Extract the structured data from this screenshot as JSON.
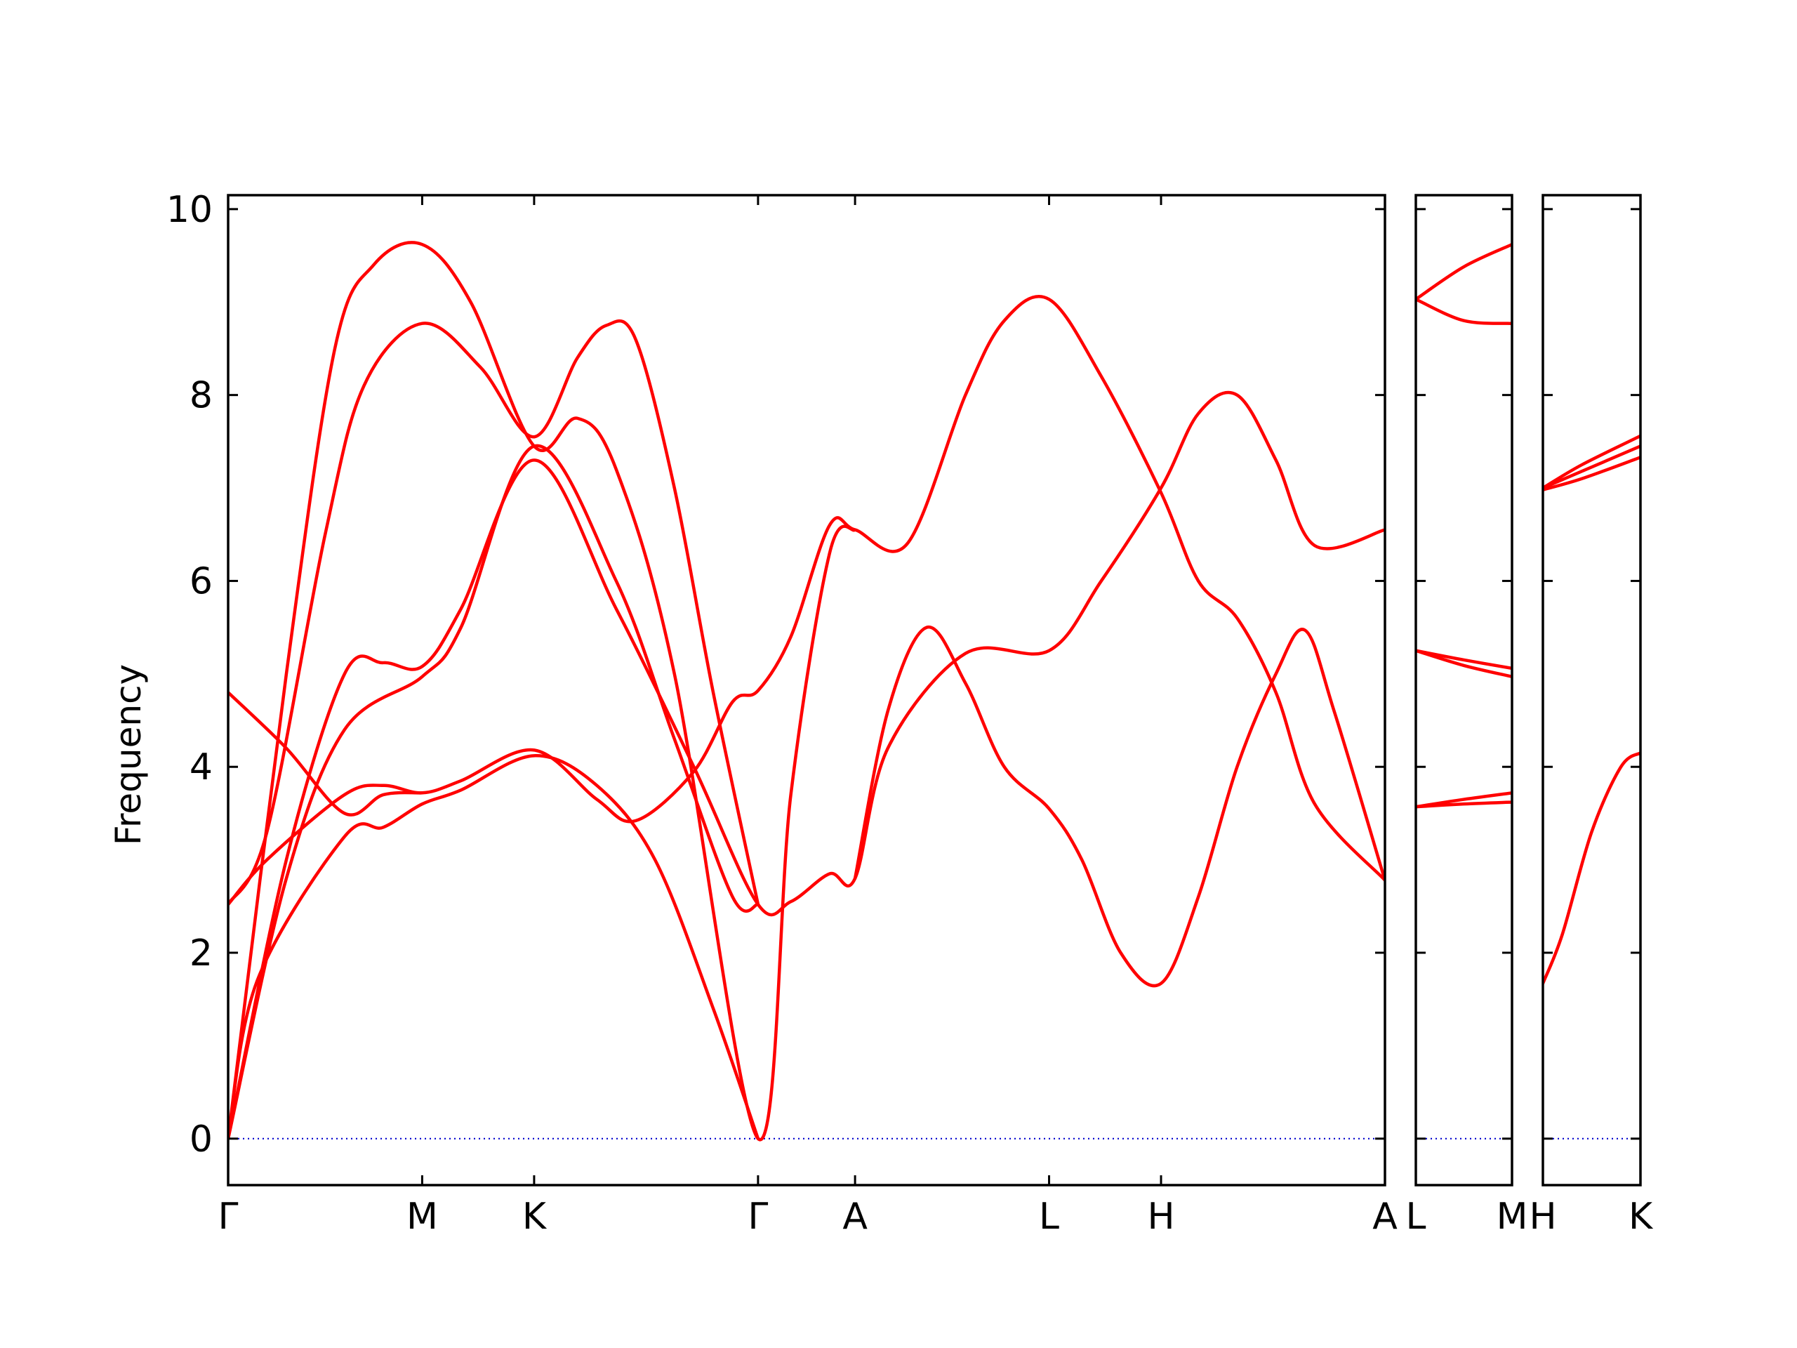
{
  "chart_data": {
    "type": "line",
    "ylabel": "Frequency",
    "ylim": [
      -0.5,
      10.15
    ],
    "yticks": [
      0,
      2,
      4,
      6,
      8,
      10
    ],
    "line_color": "#ff0000",
    "zero_line_color": "#0000cc",
    "panels": [
      {
        "ticks": [
          {
            "label": "Γ",
            "x": 0
          },
          {
            "label": "M",
            "x": 1.0
          },
          {
            "label": "K",
            "x": 1.577
          },
          {
            "label": "Γ",
            "x": 2.731
          },
          {
            "label": "A",
            "x": 3.231
          },
          {
            "label": "L",
            "x": 4.231
          },
          {
            "label": "H",
            "x": 4.808
          },
          {
            "label": "A",
            "x": 5.962
          }
        ],
        "xlim": [
          0,
          5.962
        ],
        "bands": [
          [
            [
              0,
              0
            ],
            [
              0.3,
              3.0
            ],
            [
              0.6,
              5.0
            ],
            [
              0.8,
              5.12
            ],
            [
              1.0,
              5.08
            ],
            [
              1.2,
              5.7
            ],
            [
              1.577,
              7.3
            ],
            [
              2.0,
              5.7
            ],
            [
              2.4,
              4.0
            ],
            [
              2.731,
              2.52
            ],
            [
              2.9,
              2.55
            ],
            [
              3.1,
              2.85
            ],
            [
              3.231,
              2.8
            ],
            [
              3.4,
              4.2
            ],
            [
              3.8,
              5.22
            ],
            [
              4.231,
              5.25
            ],
            [
              4.5,
              6.0
            ],
            [
              4.808,
              7.0
            ],
            [
              5.0,
              7.8
            ],
            [
              5.2,
              8.0
            ],
            [
              5.4,
              7.3
            ],
            [
              5.6,
              6.38
            ],
            [
              5.962,
              6.55
            ]
          ],
          [
            [
              0,
              0
            ],
            [
              0.3,
              2.8
            ],
            [
              0.6,
              4.4
            ],
            [
              1.0,
              4.97
            ],
            [
              1.2,
              5.5
            ],
            [
              1.577,
              7.45
            ],
            [
              2.0,
              6.0
            ],
            [
              2.3,
              4.3
            ],
            [
              2.6,
              2.6
            ],
            [
              2.731,
              2.52
            ]
          ],
          [
            [
              0,
              0
            ],
            [
              0.15,
              1.7
            ],
            [
              0.6,
              3.25
            ],
            [
              0.8,
              3.35
            ],
            [
              1.0,
              3.6
            ],
            [
              1.2,
              3.75
            ],
            [
              1.577,
              4.12
            ],
            [
              1.9,
              3.8
            ],
            [
              2.2,
              3.0
            ],
            [
              2.5,
              1.4
            ],
            [
              2.731,
              0
            ]
          ],
          [
            [
              0,
              2.52
            ],
            [
              0.2,
              3.0
            ],
            [
              0.6,
              3.7
            ],
            [
              0.8,
              3.8
            ],
            [
              1.0,
              3.72
            ],
            [
              1.2,
              3.85
            ],
            [
              1.577,
              4.18
            ],
            [
              1.9,
              3.65
            ],
            [
              2.1,
              3.42
            ],
            [
              2.4,
              3.95
            ],
            [
              2.6,
              4.7
            ],
            [
              2.731,
              4.82
            ],
            [
              2.9,
              5.4
            ],
            [
              3.1,
              6.6
            ],
            [
              3.231,
              6.55
            ],
            [
              3.5,
              6.4
            ],
            [
              3.8,
              8.0
            ],
            [
              4.0,
              8.8
            ],
            [
              4.231,
              9.03
            ],
            [
              4.5,
              8.2
            ],
            [
              4.808,
              6.95
            ],
            [
              5.0,
              6.0
            ],
            [
              5.2,
              5.6
            ],
            [
              5.4,
              4.8
            ],
            [
              5.6,
              3.6
            ],
            [
              5.962,
              2.78
            ]
          ],
          [
            [
              0,
              2.52
            ],
            [
              0.2,
              3.3
            ],
            [
              0.5,
              6.5
            ],
            [
              0.7,
              8.1
            ],
            [
              1.0,
              8.77
            ],
            [
              1.3,
              8.3
            ],
            [
              1.577,
              7.55
            ],
            [
              1.8,
              8.4
            ],
            [
              1.95,
              8.75
            ],
            [
              2.1,
              8.6
            ],
            [
              2.3,
              7.0
            ],
            [
              2.5,
              4.8
            ],
            [
              2.731,
              2.52
            ]
          ],
          [
            [
              0,
              0
            ],
            [
              0.3,
              5.0
            ],
            [
              0.55,
              8.5
            ],
            [
              0.75,
              9.4
            ],
            [
              1.0,
              9.62
            ],
            [
              1.25,
              9.0
            ],
            [
              1.577,
              7.45
            ],
            [
              1.8,
              7.75
            ],
            [
              2.0,
              7.2
            ],
            [
              2.3,
              5.0
            ],
            [
              2.731,
              0
            ],
            [
              2.9,
              3.7
            ],
            [
              3.1,
              6.3
            ],
            [
              3.231,
              6.55
            ]
          ],
          [
            [
              0,
              4.8
            ],
            [
              0.3,
              4.2
            ],
            [
              0.6,
              3.5
            ],
            [
              0.8,
              3.7
            ],
            [
              1.0,
              3.72
            ]
          ],
          [
            [
              3.231,
              2.8
            ],
            [
              3.4,
              4.6
            ],
            [
              3.6,
              5.5
            ],
            [
              3.8,
              4.9
            ],
            [
              4.0,
              4.0
            ],
            [
              4.231,
              3.55
            ],
            [
              4.4,
              3.0
            ],
            [
              4.6,
              2.0
            ],
            [
              4.808,
              1.67
            ],
            [
              5.0,
              2.6
            ],
            [
              5.2,
              4.0
            ],
            [
              5.4,
              5.0
            ],
            [
              5.55,
              5.47
            ],
            [
              5.7,
              4.6
            ],
            [
              5.962,
              2.78
            ]
          ]
        ]
      },
      {
        "ticks": [
          {
            "label": "L",
            "x": 0
          },
          {
            "label": "M",
            "x": 0.5
          }
        ],
        "xlim": [
          0,
          0.5
        ],
        "bands": [
          [
            [
              0,
              9.03
            ],
            [
              0.25,
              9.38
            ],
            [
              0.5,
              9.62
            ]
          ],
          [
            [
              0,
              9.03
            ],
            [
              0.25,
              8.8
            ],
            [
              0.5,
              8.77
            ]
          ],
          [
            [
              0,
              5.25
            ],
            [
              0.25,
              5.15
            ],
            [
              0.5,
              5.06
            ]
          ],
          [
            [
              0,
              5.25
            ],
            [
              0.25,
              5.09
            ],
            [
              0.5,
              4.97
            ]
          ],
          [
            [
              0,
              3.57
            ],
            [
              0.25,
              3.65
            ],
            [
              0.5,
              3.72
            ]
          ],
          [
            [
              0,
              3.57
            ],
            [
              0.25,
              3.6
            ],
            [
              0.5,
              3.62
            ]
          ]
        ]
      },
      {
        "ticks": [
          {
            "label": "H",
            "x": 0
          },
          {
            "label": "K",
            "x": 0.5
          }
        ],
        "xlim": [
          0,
          0.5
        ],
        "bands": [
          [
            [
              0,
              7.0
            ],
            [
              0.2,
              7.25
            ],
            [
              0.5,
              7.56
            ]
          ],
          [
            [
              0,
              7.0
            ],
            [
              0.2,
              7.18
            ],
            [
              0.5,
              7.45
            ]
          ],
          [
            [
              0,
              6.98
            ],
            [
              0.2,
              7.1
            ],
            [
              0.5,
              7.33
            ]
          ],
          [
            [
              0,
              1.67
            ],
            [
              0.1,
              2.2
            ],
            [
              0.25,
              3.3
            ],
            [
              0.4,
              4.0
            ],
            [
              0.5,
              4.15
            ]
          ]
        ]
      }
    ]
  }
}
